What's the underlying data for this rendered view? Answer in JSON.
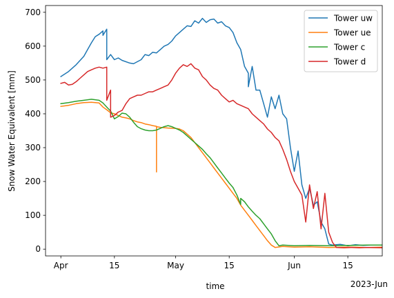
{
  "chart_data": {
    "type": "line",
    "xlabel": "time",
    "ylabel": "Snow Water Equivalent [mm]",
    "x_offset_label": "2023-Jun",
    "xlim": [
      "2023-03-28",
      "2023-06-24"
    ],
    "ylim": [
      -20,
      720
    ],
    "x_ticks": [
      {
        "date": "2023-04-01",
        "label": "Apr"
      },
      {
        "date": "2023-04-15",
        "label": "15"
      },
      {
        "date": "2023-05-01",
        "label": "May"
      },
      {
        "date": "2023-05-15",
        "label": "15"
      },
      {
        "date": "2023-06-01",
        "label": "Jun"
      },
      {
        "date": "2023-06-15",
        "label": "15"
      }
    ],
    "y_ticks": [
      0,
      100,
      200,
      300,
      400,
      500,
      600,
      700
    ],
    "legend_position": "top-right",
    "grid": false,
    "series": [
      {
        "name": "Tower uw",
        "color": "#1f77b4",
        "points": [
          [
            "2023-04-01",
            510
          ],
          [
            "2023-04-03",
            525
          ],
          [
            "2023-04-05",
            545
          ],
          [
            "2023-04-07",
            570
          ],
          [
            "2023-04-08",
            590
          ],
          [
            "2023-04-09",
            610
          ],
          [
            "2023-04-10",
            628
          ],
          [
            "2023-04-11",
            635
          ],
          [
            "2023-04-12",
            645
          ],
          [
            "2023-04-12",
            632
          ],
          [
            "2023-04-13",
            650
          ],
          [
            "2023-04-13",
            560
          ],
          [
            "2023-04-14",
            575
          ],
          [
            "2023-04-15",
            560
          ],
          [
            "2023-04-16",
            565
          ],
          [
            "2023-04-17",
            558
          ],
          [
            "2023-04-19",
            550
          ],
          [
            "2023-04-20",
            548
          ],
          [
            "2023-04-22",
            560
          ],
          [
            "2023-04-23",
            575
          ],
          [
            "2023-04-24",
            572
          ],
          [
            "2023-04-25",
            582
          ],
          [
            "2023-04-26",
            580
          ],
          [
            "2023-04-27",
            590
          ],
          [
            "2023-04-28",
            600
          ],
          [
            "2023-04-29",
            605
          ],
          [
            "2023-04-30",
            615
          ],
          [
            "2023-05-01",
            630
          ],
          [
            "2023-05-02",
            640
          ],
          [
            "2023-05-03",
            650
          ],
          [
            "2023-05-04",
            660
          ],
          [
            "2023-05-05",
            658
          ],
          [
            "2023-05-06",
            675
          ],
          [
            "2023-05-07",
            668
          ],
          [
            "2023-05-08",
            682
          ],
          [
            "2023-05-09",
            670
          ],
          [
            "2023-05-10",
            678
          ],
          [
            "2023-05-11",
            680
          ],
          [
            "2023-05-12",
            668
          ],
          [
            "2023-05-13",
            672
          ],
          [
            "2023-05-14",
            660
          ],
          [
            "2023-05-15",
            655
          ],
          [
            "2023-05-16",
            640
          ],
          [
            "2023-05-17",
            610
          ],
          [
            "2023-05-18",
            590
          ],
          [
            "2023-05-19",
            540
          ],
          [
            "2023-05-20",
            520
          ],
          [
            "2023-05-20",
            480
          ],
          [
            "2023-05-21",
            540
          ],
          [
            "2023-05-22",
            470
          ],
          [
            "2023-05-23",
            470
          ],
          [
            "2023-05-24",
            430
          ],
          [
            "2023-05-25",
            390
          ],
          [
            "2023-05-26",
            450
          ],
          [
            "2023-05-27",
            415
          ],
          [
            "2023-05-28",
            455
          ],
          [
            "2023-05-29",
            400
          ],
          [
            "2023-05-30",
            385
          ],
          [
            "2023-05-31",
            300
          ],
          [
            "2023-06-01",
            230
          ],
          [
            "2023-06-02",
            290
          ],
          [
            "2023-06-03",
            190
          ],
          [
            "2023-06-04",
            150
          ],
          [
            "2023-06-05",
            180
          ],
          [
            "2023-06-06",
            130
          ],
          [
            "2023-06-07",
            140
          ],
          [
            "2023-06-08",
            80
          ],
          [
            "2023-06-09",
            60
          ],
          [
            "2023-06-10",
            15
          ],
          [
            "2023-06-11",
            12
          ],
          [
            "2023-06-13",
            14
          ],
          [
            "2023-06-15",
            10
          ],
          [
            "2023-06-17",
            13
          ],
          [
            "2023-06-19",
            11
          ],
          [
            "2023-06-21",
            12
          ],
          [
            "2023-06-24",
            12
          ]
        ]
      },
      {
        "name": "Tower ue",
        "color": "#ff7f0e",
        "points": [
          [
            "2023-04-01",
            422
          ],
          [
            "2023-04-03",
            425
          ],
          [
            "2023-04-05",
            430
          ],
          [
            "2023-04-07",
            433
          ],
          [
            "2023-04-09",
            434
          ],
          [
            "2023-04-11",
            432
          ],
          [
            "2023-04-12",
            420
          ],
          [
            "2023-04-13",
            412
          ],
          [
            "2023-04-14",
            403
          ],
          [
            "2023-04-15",
            400
          ],
          [
            "2023-04-16",
            395
          ],
          [
            "2023-04-17",
            390
          ],
          [
            "2023-04-18",
            388
          ],
          [
            "2023-04-19",
            385
          ],
          [
            "2023-04-20",
            380
          ],
          [
            "2023-04-21",
            376
          ],
          [
            "2023-04-22",
            374
          ],
          [
            "2023-04-23",
            370
          ],
          [
            "2023-04-24",
            368
          ],
          [
            "2023-04-25",
            365
          ],
          [
            "2023-04-26",
            363
          ],
          [
            "2023-04-26",
            228
          ],
          [
            "2023-04-26",
            362
          ],
          [
            "2023-04-27",
            360
          ],
          [
            "2023-04-29",
            358
          ],
          [
            "2023-05-01",
            357
          ],
          [
            "2023-05-02",
            355
          ],
          [
            "2023-05-03",
            350
          ],
          [
            "2023-05-04",
            340
          ],
          [
            "2023-05-05",
            330
          ],
          [
            "2023-05-06",
            315
          ],
          [
            "2023-05-07",
            300
          ],
          [
            "2023-05-08",
            285
          ],
          [
            "2023-05-09",
            270
          ],
          [
            "2023-05-10",
            255
          ],
          [
            "2023-05-11",
            240
          ],
          [
            "2023-05-12",
            225
          ],
          [
            "2023-05-13",
            210
          ],
          [
            "2023-05-14",
            195
          ],
          [
            "2023-05-15",
            180
          ],
          [
            "2023-05-16",
            165
          ],
          [
            "2023-05-17",
            150
          ],
          [
            "2023-05-18",
            130
          ],
          [
            "2023-05-19",
            115
          ],
          [
            "2023-05-20",
            100
          ],
          [
            "2023-05-21",
            85
          ],
          [
            "2023-05-22",
            70
          ],
          [
            "2023-05-23",
            55
          ],
          [
            "2023-05-24",
            40
          ],
          [
            "2023-05-25",
            25
          ],
          [
            "2023-05-26",
            12
          ],
          [
            "2023-05-27",
            5
          ],
          [
            "2023-05-29",
            8
          ],
          [
            "2023-06-01",
            6
          ],
          [
            "2023-06-05",
            7
          ],
          [
            "2023-06-10",
            5
          ],
          [
            "2023-06-15",
            6
          ],
          [
            "2023-06-20",
            5
          ],
          [
            "2023-06-24",
            6
          ]
        ]
      },
      {
        "name": "Tower c",
        "color": "#2ca02c",
        "points": [
          [
            "2023-04-01",
            430
          ],
          [
            "2023-04-03",
            433
          ],
          [
            "2023-04-05",
            437
          ],
          [
            "2023-04-07",
            440
          ],
          [
            "2023-04-09",
            443
          ],
          [
            "2023-04-11",
            440
          ],
          [
            "2023-04-12",
            432
          ],
          [
            "2023-04-13",
            420
          ],
          [
            "2023-04-14",
            408
          ],
          [
            "2023-04-15",
            385
          ],
          [
            "2023-04-16",
            392
          ],
          [
            "2023-04-17",
            402
          ],
          [
            "2023-04-18",
            400
          ],
          [
            "2023-04-19",
            390
          ],
          [
            "2023-04-20",
            375
          ],
          [
            "2023-04-21",
            362
          ],
          [
            "2023-04-22",
            356
          ],
          [
            "2023-04-23",
            352
          ],
          [
            "2023-04-24",
            350
          ],
          [
            "2023-04-25",
            350
          ],
          [
            "2023-04-26",
            352
          ],
          [
            "2023-04-27",
            357
          ],
          [
            "2023-04-28",
            362
          ],
          [
            "2023-04-29",
            365
          ],
          [
            "2023-04-30",
            362
          ],
          [
            "2023-05-01",
            357
          ],
          [
            "2023-05-02",
            352
          ],
          [
            "2023-05-03",
            345
          ],
          [
            "2023-05-04",
            335
          ],
          [
            "2023-05-05",
            325
          ],
          [
            "2023-05-06",
            315
          ],
          [
            "2023-05-07",
            305
          ],
          [
            "2023-05-08",
            295
          ],
          [
            "2023-05-09",
            282
          ],
          [
            "2023-05-10",
            270
          ],
          [
            "2023-05-11",
            255
          ],
          [
            "2023-05-12",
            240
          ],
          [
            "2023-05-13",
            225
          ],
          [
            "2023-05-14",
            210
          ],
          [
            "2023-05-15",
            195
          ],
          [
            "2023-05-16",
            182
          ],
          [
            "2023-05-17",
            160
          ],
          [
            "2023-05-18",
            132
          ],
          [
            "2023-05-18",
            150
          ],
          [
            "2023-05-19",
            140
          ],
          [
            "2023-05-20",
            125
          ],
          [
            "2023-05-21",
            112
          ],
          [
            "2023-05-22",
            100
          ],
          [
            "2023-05-23",
            90
          ],
          [
            "2023-05-24",
            75
          ],
          [
            "2023-05-25",
            60
          ],
          [
            "2023-05-26",
            45
          ],
          [
            "2023-05-27",
            25
          ],
          [
            "2023-05-28",
            10
          ],
          [
            "2023-05-29",
            12
          ],
          [
            "2023-06-01",
            10
          ],
          [
            "2023-06-05",
            11
          ],
          [
            "2023-06-10",
            10
          ],
          [
            "2023-06-15",
            11
          ],
          [
            "2023-06-20",
            12
          ],
          [
            "2023-06-24",
            12
          ]
        ]
      },
      {
        "name": "Tower d",
        "color": "#d62728",
        "points": [
          [
            "2023-04-01",
            490
          ],
          [
            "2023-04-02",
            493
          ],
          [
            "2023-04-03",
            485
          ],
          [
            "2023-04-04",
            487
          ],
          [
            "2023-04-05",
            495
          ],
          [
            "2023-04-06",
            505
          ],
          [
            "2023-04-07",
            515
          ],
          [
            "2023-04-08",
            525
          ],
          [
            "2023-04-09",
            530
          ],
          [
            "2023-04-10",
            535
          ],
          [
            "2023-04-11",
            538
          ],
          [
            "2023-04-12",
            535
          ],
          [
            "2023-04-13",
            538
          ],
          [
            "2023-04-13",
            440
          ],
          [
            "2023-04-14",
            470
          ],
          [
            "2023-04-14",
            390
          ],
          [
            "2023-04-15",
            395
          ],
          [
            "2023-04-16",
            405
          ],
          [
            "2023-04-17",
            410
          ],
          [
            "2023-04-18",
            430
          ],
          [
            "2023-04-19",
            445
          ],
          [
            "2023-04-20",
            450
          ],
          [
            "2023-04-21",
            455
          ],
          [
            "2023-04-22",
            455
          ],
          [
            "2023-04-23",
            460
          ],
          [
            "2023-04-24",
            465
          ],
          [
            "2023-04-25",
            465
          ],
          [
            "2023-04-26",
            470
          ],
          [
            "2023-04-27",
            475
          ],
          [
            "2023-04-28",
            480
          ],
          [
            "2023-04-29",
            485
          ],
          [
            "2023-04-30",
            500
          ],
          [
            "2023-05-01",
            520
          ],
          [
            "2023-05-02",
            535
          ],
          [
            "2023-05-03",
            545
          ],
          [
            "2023-05-04",
            540
          ],
          [
            "2023-05-05",
            548
          ],
          [
            "2023-05-06",
            535
          ],
          [
            "2023-05-07",
            530
          ],
          [
            "2023-05-08",
            510
          ],
          [
            "2023-05-09",
            500
          ],
          [
            "2023-05-10",
            485
          ],
          [
            "2023-05-11",
            475
          ],
          [
            "2023-05-12",
            470
          ],
          [
            "2023-05-13",
            455
          ],
          [
            "2023-05-14",
            445
          ],
          [
            "2023-05-15",
            435
          ],
          [
            "2023-05-16",
            440
          ],
          [
            "2023-05-17",
            430
          ],
          [
            "2023-05-18",
            425
          ],
          [
            "2023-05-19",
            420
          ],
          [
            "2023-05-20",
            415
          ],
          [
            "2023-05-21",
            400
          ],
          [
            "2023-05-22",
            390
          ],
          [
            "2023-05-23",
            380
          ],
          [
            "2023-05-24",
            370
          ],
          [
            "2023-05-25",
            355
          ],
          [
            "2023-05-26",
            345
          ],
          [
            "2023-05-27",
            330
          ],
          [
            "2023-05-28",
            320
          ],
          [
            "2023-05-29",
            295
          ],
          [
            "2023-05-30",
            265
          ],
          [
            "2023-05-31",
            230
          ],
          [
            "2023-06-01",
            200
          ],
          [
            "2023-06-02",
            180
          ],
          [
            "2023-06-03",
            160
          ],
          [
            "2023-06-04",
            80
          ],
          [
            "2023-06-05",
            190
          ],
          [
            "2023-06-06",
            120
          ],
          [
            "2023-06-07",
            170
          ],
          [
            "2023-06-08",
            60
          ],
          [
            "2023-06-09",
            165
          ],
          [
            "2023-06-10",
            50
          ],
          [
            "2023-06-11",
            20
          ],
          [
            "2023-06-12",
            5
          ],
          [
            "2023-06-14",
            4
          ],
          [
            "2023-06-16",
            5
          ],
          [
            "2023-06-18",
            4
          ],
          [
            "2023-06-20",
            5
          ],
          [
            "2023-06-24",
            4
          ]
        ]
      }
    ]
  }
}
